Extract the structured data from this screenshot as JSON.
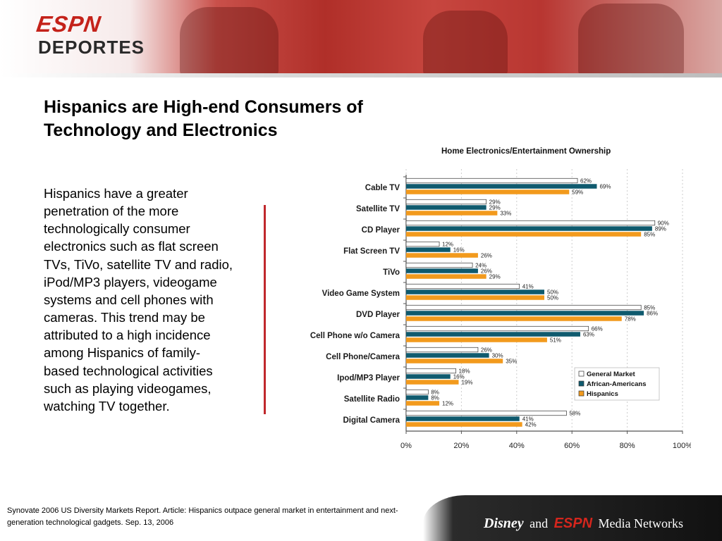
{
  "brand": {
    "logo_line1": "ESPN",
    "logo_line2": "DEPORTES"
  },
  "slide": {
    "title": "Hispanics are High-end Consumers of Technology and Electronics",
    "body": "Hispanics have a greater penetration of the more technologically consumer electronics such as flat screen TVs, TiVo, satellite TV and radio, iPod/MP3 players, videogame systems and cell phones with cameras. This trend may be attributed to a high incidence among Hispanics of family-based technological activities such as playing videogames, watching TV together."
  },
  "footer": {
    "source": "Synovate 2006 US Diversity Markets Report. Article: Hispanics outpace general market in entertainment and next-generation technological gadgets. Sep. 13, 2006",
    "disney": "Disney",
    "and": "and",
    "espn": "ESPN",
    "media": "Media Networks"
  },
  "chart_data": {
    "type": "bar",
    "orientation": "horizontal",
    "title": "Home Electronics/Entertainment Ownership",
    "categories": [
      "Cable TV",
      "Satellite TV",
      "CD Player",
      "Flat Screen TV",
      "TiVo",
      "Video Game System",
      "DVD Player",
      "Cell Phone w/o Camera",
      "Cell Phone/Camera",
      "Ipod/MP3 Player",
      "Satellite Radio",
      "Digital Camera"
    ],
    "series": [
      {
        "name": "General Market",
        "color": "#ffffff",
        "values": [
          62,
          29,
          90,
          12,
          24,
          41,
          85,
          66,
          26,
          18,
          8,
          58
        ]
      },
      {
        "name": "African-Americans",
        "color": "#0f5a6e",
        "values": [
          69,
          29,
          89,
          16,
          26,
          50,
          86,
          63,
          30,
          16,
          8,
          41
        ]
      },
      {
        "name": "Hispanics",
        "color": "#f29a1d",
        "values": [
          59,
          33,
          85,
          26,
          29,
          50,
          78,
          51,
          35,
          19,
          12,
          42
        ]
      }
    ],
    "value_labels": [
      [
        "62%",
        "29%",
        "90%",
        "12%",
        "24%",
        "41%",
        "85%",
        "66%",
        "26%",
        "18%",
        "8%",
        "58%"
      ],
      [
        "69%",
        "29%",
        "89%",
        "16%",
        "26%",
        "50%",
        "86%",
        "63%",
        "30%",
        "16%",
        "8%",
        "41%"
      ],
      [
        "59%",
        "33%",
        "85%",
        "26%",
        "29%",
        "50%",
        "78%",
        "51%",
        "35%",
        "19%",
        "12%",
        "42%"
      ]
    ],
    "xlim": [
      0,
      100
    ],
    "xticks": [
      "0%",
      "20%",
      "40%",
      "60%",
      "80%",
      "100%"
    ],
    "legend_position": "right"
  }
}
